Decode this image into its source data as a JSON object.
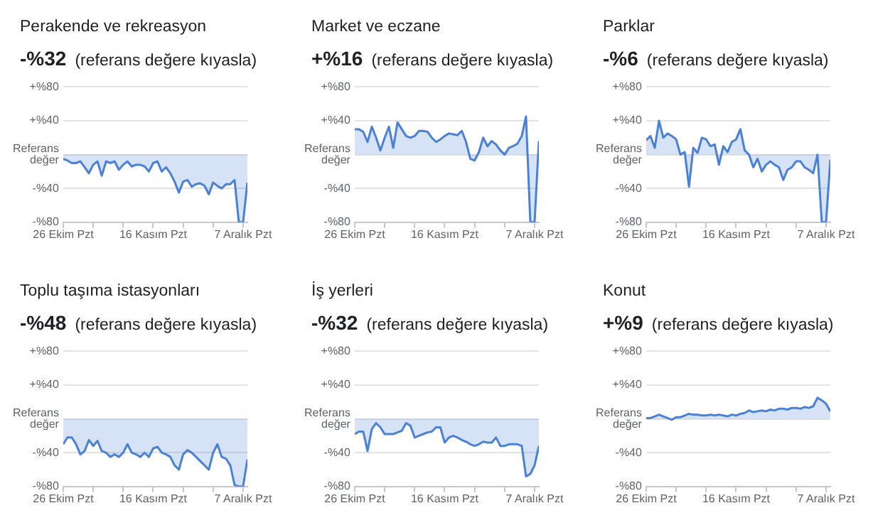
{
  "chart_data": [
    {
      "type": "area",
      "title": "Perakende ve rekreasyon",
      "subtitle": "-%32",
      "annotations": [
        "(referans değere kıyasla)"
      ],
      "grid": "y",
      "x": [
        "--10-26",
        "--10-27",
        "--10-28",
        "--10-29",
        "--10-30",
        "--10-31",
        "--11-01",
        "--11-02",
        "--11-03",
        "--11-04",
        "--11-05",
        "--11-06",
        "--11-07",
        "--11-08",
        "--11-09",
        "--11-10",
        "--11-11",
        "--11-12",
        "--11-13",
        "--11-14",
        "--11-15",
        "--11-16",
        "--11-17",
        "--11-18",
        "--11-19",
        "--11-20",
        "--11-21",
        "--11-22",
        "--11-23",
        "--11-24",
        "--11-25",
        "--11-26",
        "--11-27",
        "--11-28",
        "--11-29",
        "--11-30",
        "--12-01",
        "--12-02",
        "--12-03",
        "--12-04",
        "--12-05",
        "--12-06",
        "--12-07",
        "--12-08"
      ],
      "series": [
        {
          "color": "#4a80d6",
          "values": [
            -5,
            -7,
            -10,
            -10,
            -8,
            -15,
            -22,
            -12,
            -8,
            -25,
            -8,
            -10,
            -8,
            -18,
            -12,
            -8,
            -14,
            -12,
            -12,
            -14,
            -20,
            -10,
            -8,
            -20,
            -15,
            -22,
            -32,
            -45,
            -32,
            -30,
            -38,
            -35,
            -34,
            -37,
            -47,
            -33,
            -37,
            -40,
            -35,
            -35,
            -30,
            -80,
            -80,
            -33
          ]
        }
      ],
      "xlim": [
        "--10-26",
        "--12-08"
      ],
      "xticks": [
        {
          "value": "--10-26",
          "label": "26 Ekim Pzt"
        },
        {
          "value": "--11-02",
          "label": null
        },
        {
          "value": "--11-09",
          "label": null
        },
        {
          "value": "--11-16",
          "label": "16 Kasım Pzt"
        },
        {
          "value": "--11-23",
          "label": null
        },
        {
          "value": "--11-30",
          "label": null
        },
        {
          "value": "--12-07",
          "label": "7 Aralık Pzt"
        }
      ],
      "ylim": [
        -80,
        80
      ],
      "yticks": [
        {
          "value": -80,
          "label": "-%80"
        },
        {
          "value": -40,
          "label": "-%40"
        },
        {
          "value": 0,
          "label": "Referans\ndeğer"
        },
        {
          "value": 40,
          "label": "+%40"
        },
        {
          "value": 80,
          "label": "+%80"
        }
      ]
    },
    {
      "type": "area",
      "title": "Market ve eczane",
      "subtitle": "+%16",
      "annotations": [
        "(referans değere kıyasla)"
      ],
      "grid": "y",
      "x": [
        "--10-26",
        "--10-27",
        "--10-28",
        "--10-29",
        "--10-30",
        "--10-31",
        "--11-01",
        "--11-02",
        "--11-03",
        "--11-04",
        "--11-05",
        "--11-06",
        "--11-07",
        "--11-08",
        "--11-09",
        "--11-10",
        "--11-11",
        "--11-12",
        "--11-13",
        "--11-14",
        "--11-15",
        "--11-16",
        "--11-17",
        "--11-18",
        "--11-19",
        "--11-20",
        "--11-21",
        "--11-22",
        "--11-23",
        "--11-24",
        "--11-25",
        "--11-26",
        "--11-27",
        "--11-28",
        "--11-29",
        "--11-30",
        "--12-01",
        "--12-02",
        "--12-03",
        "--12-04",
        "--12-05",
        "--12-06",
        "--12-07",
        "--12-08"
      ],
      "series": [
        {
          "color": "#4a80d6",
          "values": [
            30,
            30,
            27,
            15,
            33,
            20,
            5,
            20,
            33,
            8,
            38,
            30,
            22,
            20,
            22,
            28,
            28,
            27,
            20,
            15,
            18,
            22,
            25,
            24,
            23,
            28,
            15,
            -5,
            -7,
            3,
            20,
            10,
            16,
            12,
            5,
            0,
            8,
            10,
            13,
            22,
            45,
            -80,
            -80,
            16
          ]
        }
      ],
      "xlim": [
        "--10-26",
        "--12-08"
      ],
      "xticks": [
        {
          "value": "--10-26",
          "label": "26 Ekim Pzt"
        },
        {
          "value": "--11-02",
          "label": null
        },
        {
          "value": "--11-09",
          "label": null
        },
        {
          "value": "--11-16",
          "label": "16 Kasım Pzt"
        },
        {
          "value": "--11-23",
          "label": null
        },
        {
          "value": "--11-30",
          "label": null
        },
        {
          "value": "--12-07",
          "label": "7 Aralık Pzt"
        }
      ],
      "ylim": [
        -80,
        80
      ],
      "yticks": [
        {
          "value": -80,
          "label": "-%80"
        },
        {
          "value": -40,
          "label": "-%40"
        },
        {
          "value": 0,
          "label": "Referans\ndeğer"
        },
        {
          "value": 40,
          "label": "+%40"
        },
        {
          "value": 80,
          "label": "+%80"
        }
      ]
    },
    {
      "type": "area",
      "title": "Parklar",
      "subtitle": "-%6",
      "annotations": [
        "(referans değere kıyasla)"
      ],
      "grid": "y",
      "x": [
        "--10-26",
        "--10-27",
        "--10-28",
        "--10-29",
        "--10-30",
        "--10-31",
        "--11-01",
        "--11-02",
        "--11-03",
        "--11-04",
        "--11-05",
        "--11-06",
        "--11-07",
        "--11-08",
        "--11-09",
        "--11-10",
        "--11-11",
        "--11-12",
        "--11-13",
        "--11-14",
        "--11-15",
        "--11-16",
        "--11-17",
        "--11-18",
        "--11-19",
        "--11-20",
        "--11-21",
        "--11-22",
        "--11-23",
        "--11-24",
        "--11-25",
        "--11-26",
        "--11-27",
        "--11-28",
        "--11-29",
        "--11-30",
        "--12-01",
        "--12-02",
        "--12-03",
        "--12-04",
        "--12-05",
        "--12-06",
        "--12-07",
        "--12-08"
      ],
      "series": [
        {
          "color": "#4a80d6",
          "values": [
            17,
            22,
            8,
            40,
            20,
            25,
            22,
            18,
            0,
            3,
            -38,
            8,
            2,
            20,
            18,
            10,
            12,
            -12,
            10,
            3,
            15,
            18,
            30,
            5,
            0,
            -15,
            -5,
            -20,
            -12,
            -8,
            -12,
            -15,
            -30,
            -18,
            -15,
            -8,
            -8,
            -15,
            -18,
            -22,
            0,
            -80,
            -80,
            -6
          ]
        }
      ],
      "xlim": [
        "--10-26",
        "--12-08"
      ],
      "xticks": [
        {
          "value": "--10-26",
          "label": "26 Ekim Pzt"
        },
        {
          "value": "--11-02",
          "label": null
        },
        {
          "value": "--11-09",
          "label": null
        },
        {
          "value": "--11-16",
          "label": "16 Kasım Pzt"
        },
        {
          "value": "--11-23",
          "label": null
        },
        {
          "value": "--11-30",
          "label": null
        },
        {
          "value": "--12-07",
          "label": "7 Aralık Pzt"
        }
      ],
      "ylim": [
        -80,
        80
      ],
      "yticks": [
        {
          "value": -80,
          "label": "-%80"
        },
        {
          "value": -40,
          "label": "-%40"
        },
        {
          "value": 0,
          "label": "Referans\ndeğer"
        },
        {
          "value": 40,
          "label": "+%40"
        },
        {
          "value": 80,
          "label": "+%80"
        }
      ]
    },
    {
      "type": "area",
      "title": "Toplu taşıma istasyonları",
      "subtitle": "-%48",
      "annotations": [
        "(referans değere kıyasla)"
      ],
      "grid": "y",
      "x": [
        "--10-26",
        "--10-27",
        "--10-28",
        "--10-29",
        "--10-30",
        "--10-31",
        "--11-01",
        "--11-02",
        "--11-03",
        "--11-04",
        "--11-05",
        "--11-06",
        "--11-07",
        "--11-08",
        "--11-09",
        "--11-10",
        "--11-11",
        "--11-12",
        "--11-13",
        "--11-14",
        "--11-15",
        "--11-16",
        "--11-17",
        "--11-18",
        "--11-19",
        "--11-20",
        "--11-21",
        "--11-22",
        "--11-23",
        "--11-24",
        "--11-25",
        "--11-26",
        "--11-27",
        "--11-28",
        "--11-29",
        "--11-30",
        "--12-01",
        "--12-02",
        "--12-03",
        "--12-04",
        "--12-05",
        "--12-06",
        "--12-07",
        "--12-08"
      ],
      "series": [
        {
          "color": "#4a80d6",
          "values": [
            -30,
            -22,
            -22,
            -30,
            -42,
            -38,
            -25,
            -32,
            -26,
            -38,
            -40,
            -45,
            -42,
            -45,
            -40,
            -30,
            -40,
            -42,
            -45,
            -40,
            -45,
            -35,
            -33,
            -40,
            -42,
            -45,
            -55,
            -60,
            -42,
            -37,
            -40,
            -45,
            -50,
            -55,
            -60,
            -40,
            -30,
            -45,
            -47,
            -55,
            -78,
            -80,
            -80,
            -48
          ]
        }
      ],
      "xlim": [
        "--10-26",
        "--12-08"
      ],
      "xticks": [
        {
          "value": "--10-26",
          "label": "26 Ekim Pzt"
        },
        {
          "value": "--11-02",
          "label": null
        },
        {
          "value": "--11-09",
          "label": null
        },
        {
          "value": "--11-16",
          "label": "16 Kasım Pzt"
        },
        {
          "value": "--11-23",
          "label": null
        },
        {
          "value": "--11-30",
          "label": null
        },
        {
          "value": "--12-07",
          "label": "7 Aralık Pzt"
        }
      ],
      "ylim": [
        -80,
        80
      ],
      "yticks": [
        {
          "value": -80,
          "label": "-%80"
        },
        {
          "value": -40,
          "label": "-%40"
        },
        {
          "value": 0,
          "label": "Referans\ndeğer"
        },
        {
          "value": 40,
          "label": "+%40"
        },
        {
          "value": 80,
          "label": "+%80"
        }
      ]
    },
    {
      "type": "area",
      "title": "İş yerleri",
      "subtitle": "-%32",
      "annotations": [
        "(referans değere kıyasla)"
      ],
      "grid": "y",
      "x": [
        "--10-26",
        "--10-27",
        "--10-28",
        "--10-29",
        "--10-30",
        "--10-31",
        "--11-01",
        "--11-02",
        "--11-03",
        "--11-04",
        "--11-05",
        "--11-06",
        "--11-07",
        "--11-08",
        "--11-09",
        "--11-10",
        "--11-11",
        "--11-12",
        "--11-13",
        "--11-14",
        "--11-15",
        "--11-16",
        "--11-17",
        "--11-18",
        "--11-19",
        "--11-20",
        "--11-21",
        "--11-22",
        "--11-23",
        "--11-24",
        "--11-25",
        "--11-26",
        "--11-27",
        "--11-28",
        "--11-29",
        "--11-30",
        "--12-01",
        "--12-02",
        "--12-03",
        "--12-04",
        "--12-05",
        "--12-06",
        "--12-07",
        "--12-08"
      ],
      "series": [
        {
          "color": "#4a80d6",
          "values": [
            -18,
            -15,
            -15,
            -38,
            -12,
            -5,
            -10,
            -18,
            -18,
            -18,
            -16,
            -14,
            -5,
            -8,
            -22,
            -20,
            -18,
            -16,
            -15,
            -10,
            -10,
            -28,
            -22,
            -20,
            -22,
            -25,
            -27,
            -30,
            -32,
            -30,
            -27,
            -28,
            -28,
            -22,
            -32,
            -32,
            -30,
            -30,
            -30,
            -32,
            -68,
            -65,
            -55,
            -32
          ]
        }
      ],
      "xlim": [
        "--10-26",
        "--12-08"
      ],
      "xticks": [
        {
          "value": "--10-26",
          "label": "26 Ekim Pzt"
        },
        {
          "value": "--11-02",
          "label": null
        },
        {
          "value": "--11-09",
          "label": null
        },
        {
          "value": "--11-16",
          "label": "16 Kasım Pzt"
        },
        {
          "value": "--11-23",
          "label": null
        },
        {
          "value": "--11-30",
          "label": null
        },
        {
          "value": "--12-07",
          "label": "7 Aralık Pzt"
        }
      ],
      "ylim": [
        -80,
        80
      ],
      "yticks": [
        {
          "value": -80,
          "label": "-%80"
        },
        {
          "value": -40,
          "label": "-%40"
        },
        {
          "value": 0,
          "label": "Referans\ndeğer"
        },
        {
          "value": 40,
          "label": "+%40"
        },
        {
          "value": 80,
          "label": "+%80"
        }
      ]
    },
    {
      "type": "area",
      "title": "Konut",
      "subtitle": "+%9",
      "annotations": [
        "(referans değere kıyasla)"
      ],
      "grid": "y",
      "x": [
        "--10-26",
        "--10-27",
        "--10-28",
        "--10-29",
        "--10-30",
        "--10-31",
        "--11-01",
        "--11-02",
        "--11-03",
        "--11-04",
        "--11-05",
        "--11-06",
        "--11-07",
        "--11-08",
        "--11-09",
        "--11-10",
        "--11-11",
        "--11-12",
        "--11-13",
        "--11-14",
        "--11-15",
        "--11-16",
        "--11-17",
        "--11-18",
        "--11-19",
        "--11-20",
        "--11-21",
        "--11-22",
        "--11-23",
        "--11-24",
        "--11-25",
        "--11-26",
        "--11-27",
        "--11-28",
        "--11-29",
        "--11-30",
        "--12-01",
        "--12-02",
        "--12-03",
        "--12-04",
        "--12-05",
        "--12-06",
        "--12-07",
        "--12-08"
      ],
      "series": [
        {
          "color": "#4a80d6",
          "values": [
            1,
            1,
            3,
            5,
            3,
            1,
            -1,
            2,
            2,
            4,
            6,
            5,
            5,
            4,
            4,
            5,
            4,
            5,
            4,
            3,
            5,
            4,
            6,
            7,
            10,
            8,
            9,
            10,
            9,
            11,
            10,
            12,
            12,
            11,
            13,
            13,
            12,
            14,
            13,
            15,
            25,
            22,
            18,
            9
          ]
        }
      ],
      "xlim": [
        "--10-26",
        "--12-08"
      ],
      "xticks": [
        {
          "value": "--10-26",
          "label": "26 Ekim Pzt"
        },
        {
          "value": "--11-02",
          "label": null
        },
        {
          "value": "--11-09",
          "label": null
        },
        {
          "value": "--11-16",
          "label": "16 Kasım Pzt"
        },
        {
          "value": "--11-23",
          "label": null
        },
        {
          "value": "--11-30",
          "label": null
        },
        {
          "value": "--12-07",
          "label": "7 Aralık Pzt"
        }
      ],
      "ylim": [
        -80,
        80
      ],
      "yticks": [
        {
          "value": -80,
          "label": "-%80"
        },
        {
          "value": -40,
          "label": "-%40"
        },
        {
          "value": 0,
          "label": "Referans\ndeğer"
        },
        {
          "value": 40,
          "label": "+%40"
        },
        {
          "value": 80,
          "label": "+%80"
        }
      ]
    }
  ]
}
